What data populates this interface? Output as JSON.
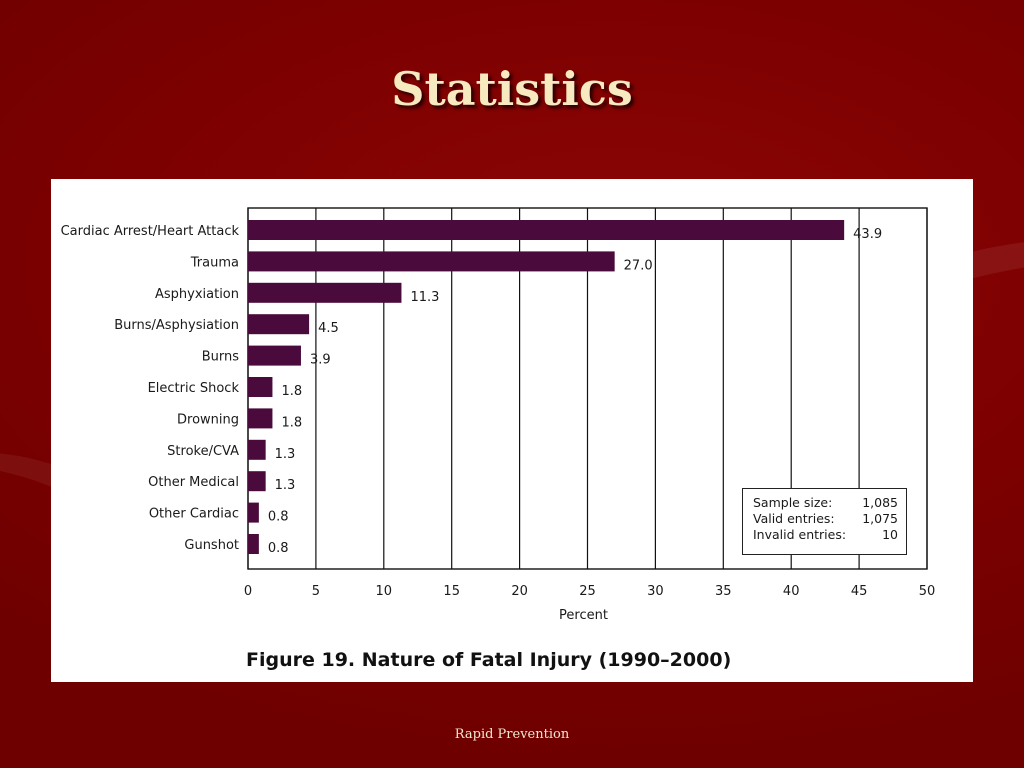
{
  "slide": {
    "title": "Statistics",
    "footer": "Rapid Prevention"
  },
  "colors": {
    "background": "#7a0000",
    "bar": "#4a0a3c",
    "title": "#f7e9c0"
  },
  "chart_data": {
    "type": "bar",
    "orientation": "horizontal",
    "caption": "Figure 19.  Nature of Fatal Injury (1990–2000)",
    "xlabel": "Percent",
    "ylabel": "",
    "xlim": [
      0,
      50
    ],
    "xticks": [
      0,
      5,
      10,
      15,
      20,
      25,
      30,
      35,
      40,
      45,
      50
    ],
    "grid": true,
    "categories": [
      "Cardiac Arrest/Heart Attack",
      "Trauma",
      "Asphyxiation",
      "Burns/Asphysiation",
      "Burns",
      "Electric Shock",
      "Drowning",
      "Stroke/CVA",
      "Other Medical",
      "Other Cardiac",
      "Gunshot"
    ],
    "values": [
      43.9,
      27.0,
      11.3,
      4.5,
      3.9,
      1.8,
      1.8,
      1.3,
      1.3,
      0.8,
      0.8
    ],
    "value_labels": [
      "43.9",
      "27.0",
      "11.3",
      "4.5",
      "3.9",
      "1.8",
      "1.8",
      "1.3",
      "1.3",
      "0.8",
      "0.8"
    ],
    "info_box": {
      "rows": [
        {
          "label": "Sample size:",
          "value": "1,085"
        },
        {
          "label": "Valid entries:",
          "value": "1,075"
        },
        {
          "label": "Invalid entries:",
          "value": "10"
        }
      ]
    }
  }
}
